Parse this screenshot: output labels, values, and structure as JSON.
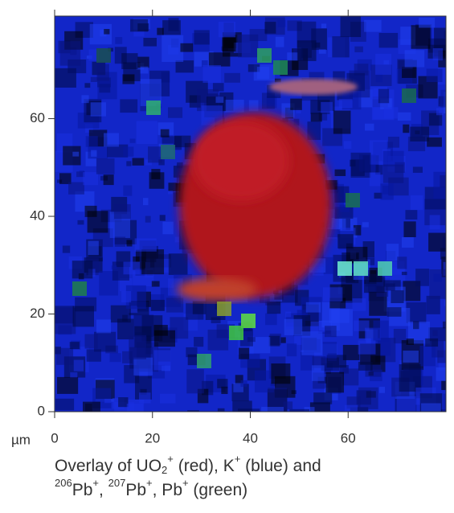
{
  "chart_data": {
    "type": "image",
    "x_unit": "µm",
    "xlim": [
      0,
      80
    ],
    "ylim": [
      0,
      81
    ],
    "xticks": [
      0,
      20,
      40,
      60
    ],
    "yticks": [
      0,
      20,
      40,
      60
    ],
    "caption": [
      [
        "Overlay of UO",
        "2",
        "+",
        " (red), K",
        "+",
        " (blue) and"
      ],
      [
        "206",
        "Pb",
        "+",
        ", ",
        "207",
        "Pb",
        "+",
        ", Pb",
        "+",
        " (green)"
      ]
    ]
  }
}
